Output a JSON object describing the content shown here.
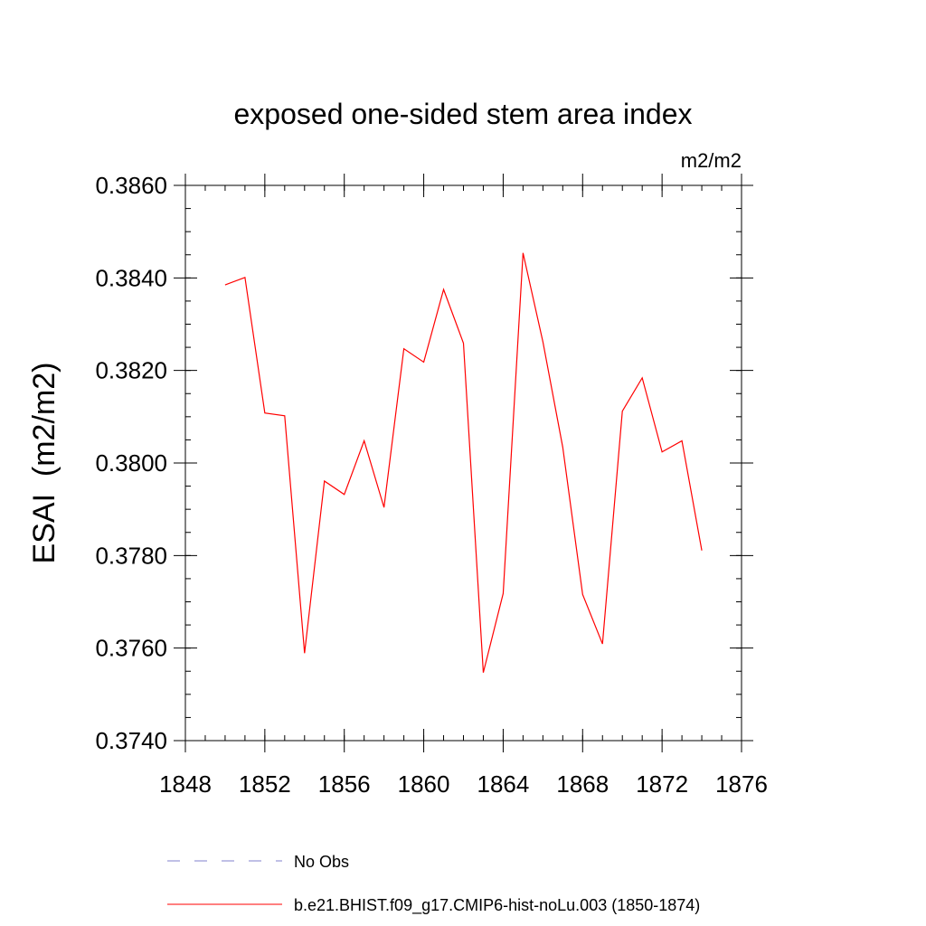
{
  "colors": {
    "background": "#ffffff",
    "axis": "#000000",
    "series_line": "#ff0000",
    "no_obs_line": "#8080cc"
  },
  "chart_data": {
    "type": "line",
    "title": "exposed one-sided stem area index",
    "units_label": "m2/m2",
    "xlabel": "",
    "ylabel": "ESAI  (m2/m2)",
    "xlim": [
      1848,
      1876
    ],
    "ylim": [
      0.374,
      0.386
    ],
    "x_ticks": [
      1848,
      1852,
      1856,
      1860,
      1864,
      1868,
      1872,
      1876
    ],
    "x_tick_labels": [
      "1848",
      "1852",
      "1856",
      "1860",
      "1864",
      "1868",
      "1872",
      "1876"
    ],
    "x_minor_step": 1,
    "y_ticks": [
      0.374,
      0.376,
      0.378,
      0.38,
      0.382,
      0.384,
      0.386
    ],
    "y_tick_labels": [
      "0.3740",
      "0.3760",
      "0.3780",
      "0.3800",
      "0.3820",
      "0.3840",
      "0.3860"
    ],
    "y_minor_step": 0.0005,
    "grid": false,
    "legend_position": "bottom-center",
    "series": [
      {
        "name": "No Obs",
        "style": "dashed",
        "color": "#8080cc",
        "x": [],
        "values": []
      },
      {
        "name": "b.e21.BHIST.f09_g17.CMIP6-hist-noLu.003 (1850-1874)",
        "style": "solid",
        "color": "#ff0000",
        "x": [
          1850,
          1851,
          1852,
          1853,
          1854,
          1855,
          1856,
          1857,
          1858,
          1859,
          1860,
          1861,
          1862,
          1863,
          1864,
          1865,
          1866,
          1867,
          1868,
          1869,
          1870,
          1871,
          1872,
          1873,
          1874
        ],
        "values": [
          0.38385,
          0.38401,
          0.38108,
          0.38102,
          0.37589,
          0.37961,
          0.37932,
          0.38048,
          0.37904,
          0.38247,
          0.38218,
          0.38375,
          0.38259,
          0.37547,
          0.37718,
          0.38454,
          0.38262,
          0.38034,
          0.37716,
          0.37609,
          0.38112,
          0.38184,
          0.38024,
          0.38048,
          0.37811
        ]
      }
    ]
  }
}
